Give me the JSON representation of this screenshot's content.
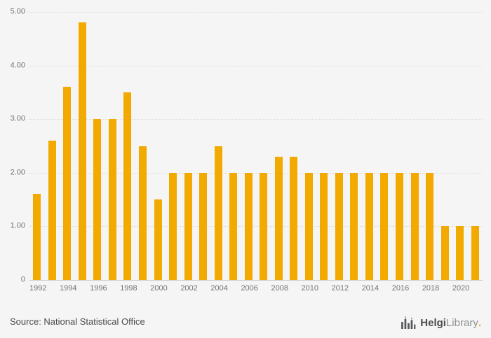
{
  "chart_data": {
    "type": "bar",
    "title": "",
    "xlabel": "",
    "ylabel": "",
    "categories": [
      "1992",
      "1993",
      "1994",
      "1995",
      "1996",
      "1997",
      "1998",
      "1999",
      "2000",
      "2001",
      "2002",
      "2003",
      "2004",
      "2005",
      "2006",
      "2007",
      "2008",
      "2009",
      "2010",
      "2011",
      "2012",
      "2013",
      "2014",
      "2015",
      "2016",
      "2017",
      "2018",
      "2019",
      "2020",
      "2021"
    ],
    "values": [
      1.6,
      2.6,
      3.6,
      4.8,
      3.0,
      3.0,
      3.5,
      2.5,
      1.5,
      2.0,
      2.0,
      2.0,
      2.5,
      2.0,
      2.0,
      2.0,
      2.3,
      2.3,
      2.0,
      2.0,
      2.0,
      2.0,
      2.0,
      2.0,
      2.0,
      2.0,
      2.0,
      1.0,
      1.0,
      1.0
    ],
    "ylim": [
      0,
      5
    ],
    "y_ticks": [
      "5.00",
      "4.00",
      "3.00",
      "2.00",
      "1.00",
      "0"
    ],
    "x_tick_labels": [
      "1992",
      "1994",
      "1996",
      "1998",
      "2000",
      "2002",
      "2004",
      "2006",
      "2008",
      "2010",
      "2012",
      "2014",
      "2016",
      "2018",
      "2020"
    ],
    "bar_color": "#F2A900",
    "grid": true,
    "legend": false
  },
  "footer": {
    "source": "Source: National Statistical Office",
    "brand": {
      "primary": "Helgi",
      "secondary": "Library",
      "suffix": "."
    }
  }
}
